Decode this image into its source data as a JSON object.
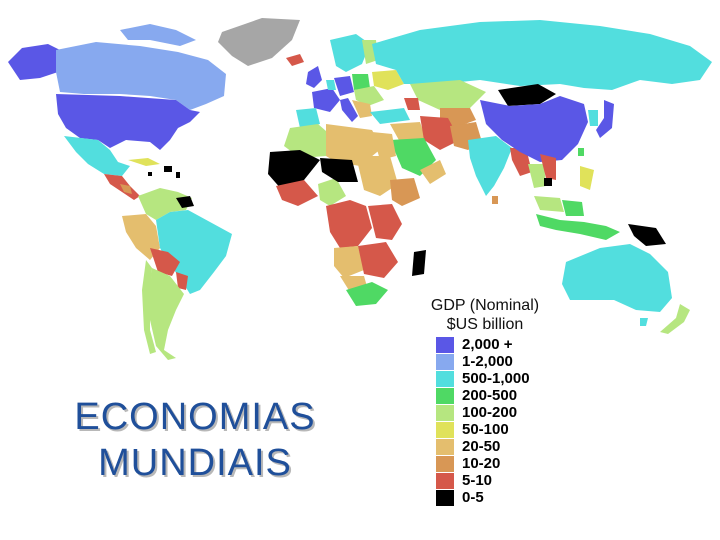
{
  "map": {
    "legend": {
      "title_line1": "GDP (Nominal)",
      "title_line2": "$US billion",
      "items": [
        {
          "label": "2,000 +",
          "color": "#5a57e6"
        },
        {
          "label": "1-2,000",
          "color": "#87a9ef"
        },
        {
          "label": "500-1,000",
          "color": "#52dede"
        },
        {
          "label": "200-500",
          "color": "#4fd964"
        },
        {
          "label": "100-200",
          "color": "#b6e680"
        },
        {
          "label": "50-100",
          "color": "#e0e25a"
        },
        {
          "label": "20-50",
          "color": "#e4be6e"
        },
        {
          "label": "10-20",
          "color": "#d89755"
        },
        {
          "label": "5-10",
          "color": "#d5584a"
        },
        {
          "label": "0-5",
          "color": "#000000"
        }
      ]
    },
    "no_data_color": "#a6a6a6"
  },
  "headline": {
    "line1": "ECONOMIAS",
    "line2": "MUNDIAIS"
  }
}
